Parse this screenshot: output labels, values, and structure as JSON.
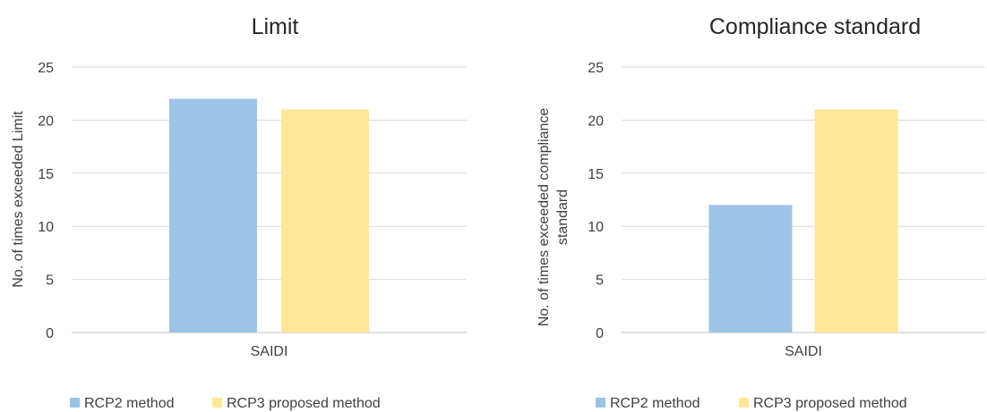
{
  "colors": {
    "rcp2": "#9DC3E6",
    "rcp3": "#FFE699",
    "grid": "#D9D9D9",
    "text": "#404040",
    "title": "#262626"
  },
  "chart_data": [
    {
      "type": "bar",
      "title": "Limit",
      "xlabel": "",
      "ylabel": "No. of times exceeded Limit",
      "categories": [
        "SAIDI"
      ],
      "series": [
        {
          "name": "RCP2 method",
          "values": [
            22
          ]
        },
        {
          "name": "RCP3 proposed method",
          "values": [
            21
          ]
        }
      ],
      "ylim": [
        0,
        25
      ],
      "yticks": [
        0,
        5,
        10,
        15,
        20,
        25
      ],
      "grid": true,
      "legend": "bottom"
    },
    {
      "type": "bar",
      "title": "Compliance standard",
      "xlabel": "",
      "ylabel": "No. of times exceeded compliance standard",
      "categories": [
        "SAIDI"
      ],
      "series": [
        {
          "name": "RCP2 method",
          "values": [
            12
          ]
        },
        {
          "name": "RCP3 proposed method",
          "values": [
            21
          ]
        }
      ],
      "ylim": [
        0,
        25
      ],
      "yticks": [
        0,
        5,
        10,
        15,
        20,
        25
      ],
      "grid": true,
      "legend": "bottom"
    }
  ]
}
